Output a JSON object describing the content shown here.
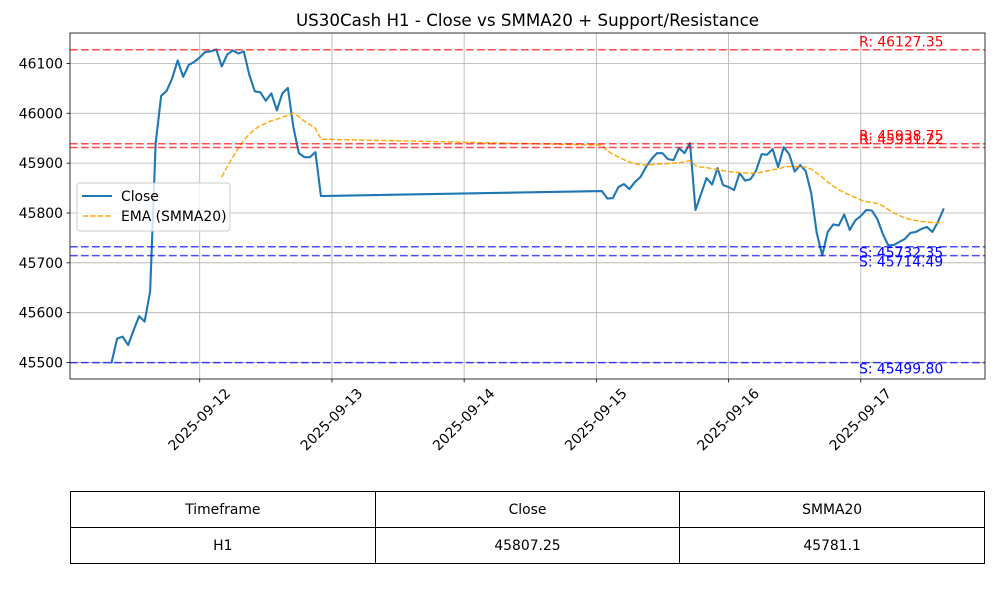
{
  "chart_data": {
    "type": "line",
    "title": "US30Cash H1 - Close vs SMMA20 + Support/Resistance",
    "x": [
      "2025-09-11 08:00",
      "2025-09-11 09:00",
      "2025-09-11 10:00",
      "2025-09-11 11:00",
      "2025-09-11 12:00",
      "2025-09-11 13:00",
      "2025-09-11 14:00",
      "2025-09-11 15:00",
      "2025-09-11 16:00",
      "2025-09-11 17:00",
      "2025-09-11 18:00",
      "2025-09-11 19:00",
      "2025-09-11 20:00",
      "2025-09-11 21:00",
      "2025-09-11 22:00",
      "2025-09-11 23:00",
      "2025-09-12 00:00",
      "2025-09-12 01:00",
      "2025-09-12 02:00",
      "2025-09-12 03:00",
      "2025-09-12 04:00",
      "2025-09-12 05:00",
      "2025-09-12 06:00",
      "2025-09-12 07:00",
      "2025-09-12 08:00",
      "2025-09-12 09:00",
      "2025-09-12 10:00",
      "2025-09-12 11:00",
      "2025-09-12 12:00",
      "2025-09-12 13:00",
      "2025-09-12 14:00",
      "2025-09-12 15:00",
      "2025-09-12 16:00",
      "2025-09-12 17:00",
      "2025-09-12 18:00",
      "2025-09-12 19:00",
      "2025-09-12 20:00",
      "2025-09-12 21:00",
      "2025-09-12 22:00",
      "2025-09-15 01:00",
      "2025-09-15 02:00",
      "2025-09-15 03:00",
      "2025-09-15 04:00",
      "2025-09-15 05:00",
      "2025-09-15 06:00",
      "2025-09-15 07:00",
      "2025-09-15 08:00",
      "2025-09-15 09:00",
      "2025-09-15 10:00",
      "2025-09-15 11:00",
      "2025-09-15 12:00",
      "2025-09-15 13:00",
      "2025-09-15 14:00",
      "2025-09-15 15:00",
      "2025-09-15 16:00",
      "2025-09-15 17:00",
      "2025-09-15 18:00",
      "2025-09-15 19:00",
      "2025-09-15 20:00",
      "2025-09-15 21:00",
      "2025-09-15 22:00",
      "2025-09-15 23:00",
      "2025-09-16 00:00",
      "2025-09-16 01:00",
      "2025-09-16 02:00",
      "2025-09-16 03:00",
      "2025-09-16 04:00",
      "2025-09-16 05:00",
      "2025-09-16 06:00",
      "2025-09-16 07:00",
      "2025-09-16 08:00",
      "2025-09-16 09:00",
      "2025-09-16 10:00",
      "2025-09-16 11:00",
      "2025-09-16 12:00",
      "2025-09-16 13:00",
      "2025-09-16 14:00",
      "2025-09-16 15:00",
      "2025-09-16 16:00",
      "2025-09-16 17:00",
      "2025-09-16 18:00",
      "2025-09-16 19:00",
      "2025-09-16 20:00",
      "2025-09-16 21:00",
      "2025-09-16 22:00",
      "2025-09-16 23:00",
      "2025-09-17 00:00",
      "2025-09-17 01:00",
      "2025-09-17 02:00",
      "2025-09-17 03:00",
      "2025-09-17 04:00",
      "2025-09-17 05:00",
      "2025-09-17 06:00",
      "2025-09-17 07:00",
      "2025-09-17 08:00",
      "2025-09-17 09:00",
      "2025-09-17 10:00",
      "2025-09-17 11:00",
      "2025-09-17 12:00",
      "2025-09-17 13:00",
      "2025-09-17 14:00",
      "2025-09-17 15:00"
    ],
    "series": [
      {
        "name": "Close",
        "color": "#1f77b4",
        "style": "solid",
        "values": [
          45500,
          45548,
          45552,
          45535,
          45565,
          45593,
          45582,
          45643,
          45940,
          46035,
          46045,
          46070,
          46106,
          46073,
          46097,
          46103,
          46112,
          46123,
          46124,
          46128,
          46094,
          46118,
          46126,
          46120,
          46124,
          46077,
          46044,
          46042,
          46025,
          46040,
          46006,
          46040,
          46051,
          45972,
          45920,
          45912,
          45912,
          45922,
          45834,
          45844,
          45829,
          45830,
          45852,
          45858,
          45848,
          45862,
          45872,
          45892,
          45908,
          45920,
          45920,
          45908,
          45906,
          45930,
          45920,
          45940,
          45806,
          45838,
          45870,
          45857,
          45890,
          45856,
          45852,
          45846,
          45880,
          45865,
          45868,
          45885,
          45918,
          45917,
          45928,
          45892,
          45932,
          45918,
          45883,
          45896,
          45884,
          45840,
          45760,
          45715,
          45762,
          45777,
          45775,
          45797,
          45766,
          45785,
          45794,
          45806,
          45805,
          45788,
          45758,
          45735,
          45736,
          45742,
          45748,
          45760,
          45762,
          45768,
          45772,
          45762,
          45782,
          45807.25
        ]
      },
      {
        "name": "EMA (SMMA20)",
        "color": "#ffa500",
        "style": "dashed",
        "values": [
          null,
          null,
          null,
          null,
          null,
          null,
          null,
          null,
          null,
          null,
          null,
          null,
          null,
          null,
          null,
          null,
          null,
          null,
          null,
          null,
          45872,
          45893,
          45912,
          45930,
          45946,
          45958,
          45968,
          45975,
          45980,
          45985,
          45988,
          45992,
          45996,
          46000,
          45993,
          45984,
          45977,
          45970,
          45948,
          45936,
          45925,
          45918,
          45912,
          45907,
          45902,
          45899,
          45897,
          45896,
          45897,
          45898,
          45899,
          45899,
          45900,
          45901,
          45902,
          45905,
          45895,
          45892,
          45891,
          45889,
          45887,
          45885,
          45883,
          45882,
          45881,
          45880,
          45880,
          45880,
          45882,
          45884,
          45887,
          45888,
          45892,
          45893,
          45893,
          45893,
          45892,
          45888,
          45880,
          45872,
          45862,
          45854,
          45847,
          45841,
          45836,
          45831,
          45826,
          45823,
          45821,
          45819,
          45814,
          45807,
          45800,
          45795,
          45790,
          45787,
          45785,
          45783,
          45782,
          45781,
          45780,
          45781.1
        ]
      }
    ],
    "x_ticks": [
      "2025-09-12",
      "2025-09-13",
      "2025-09-14",
      "2025-09-15",
      "2025-09-16",
      "2025-09-17"
    ],
    "y_ticks": [
      45500,
      45600,
      45700,
      45800,
      45900,
      46000,
      46100
    ],
    "xlim": [
      "2025-09-11 00:27",
      "2025-09-17 22:33"
    ],
    "ylim": [
      45467,
      46161
    ],
    "grid": true,
    "legend": "center-left",
    "resistance_color": "#ff0000",
    "support_color": "#0000ff",
    "resistance": [
      {
        "value": 46127.35,
        "label": "R: 46127.35"
      },
      {
        "value": 45938.75,
        "label": "R: 45938.75"
      },
      {
        "value": 45931.22,
        "label": "R: 45931.22"
      }
    ],
    "support": [
      {
        "value": 45732.35,
        "label": "S: 45732.35"
      },
      {
        "value": 45714.49,
        "label": "S: 45714.49"
      },
      {
        "value": 45499.8,
        "label": "S: 45499.80"
      }
    ]
  },
  "table": {
    "headers": [
      "Timeframe",
      "Close",
      "SMMA20"
    ],
    "rows": [
      [
        "H1",
        "45807.25",
        "45781.1"
      ]
    ]
  }
}
